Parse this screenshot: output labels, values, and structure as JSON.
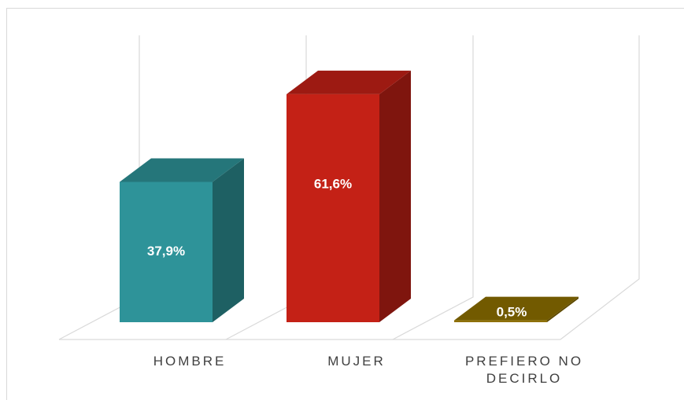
{
  "chart_data": {
    "type": "bar3d",
    "categories": [
      "HOMBRE",
      "MUJER",
      "PREFIERO NO DECIRLO"
    ],
    "values": [
      37.9,
      61.6,
      0.5
    ],
    "value_labels": [
      "37,9%",
      "61,6%",
      "0,5%"
    ],
    "colors": [
      "#2e9399",
      "#c42116",
      "#8f7000"
    ]
  }
}
